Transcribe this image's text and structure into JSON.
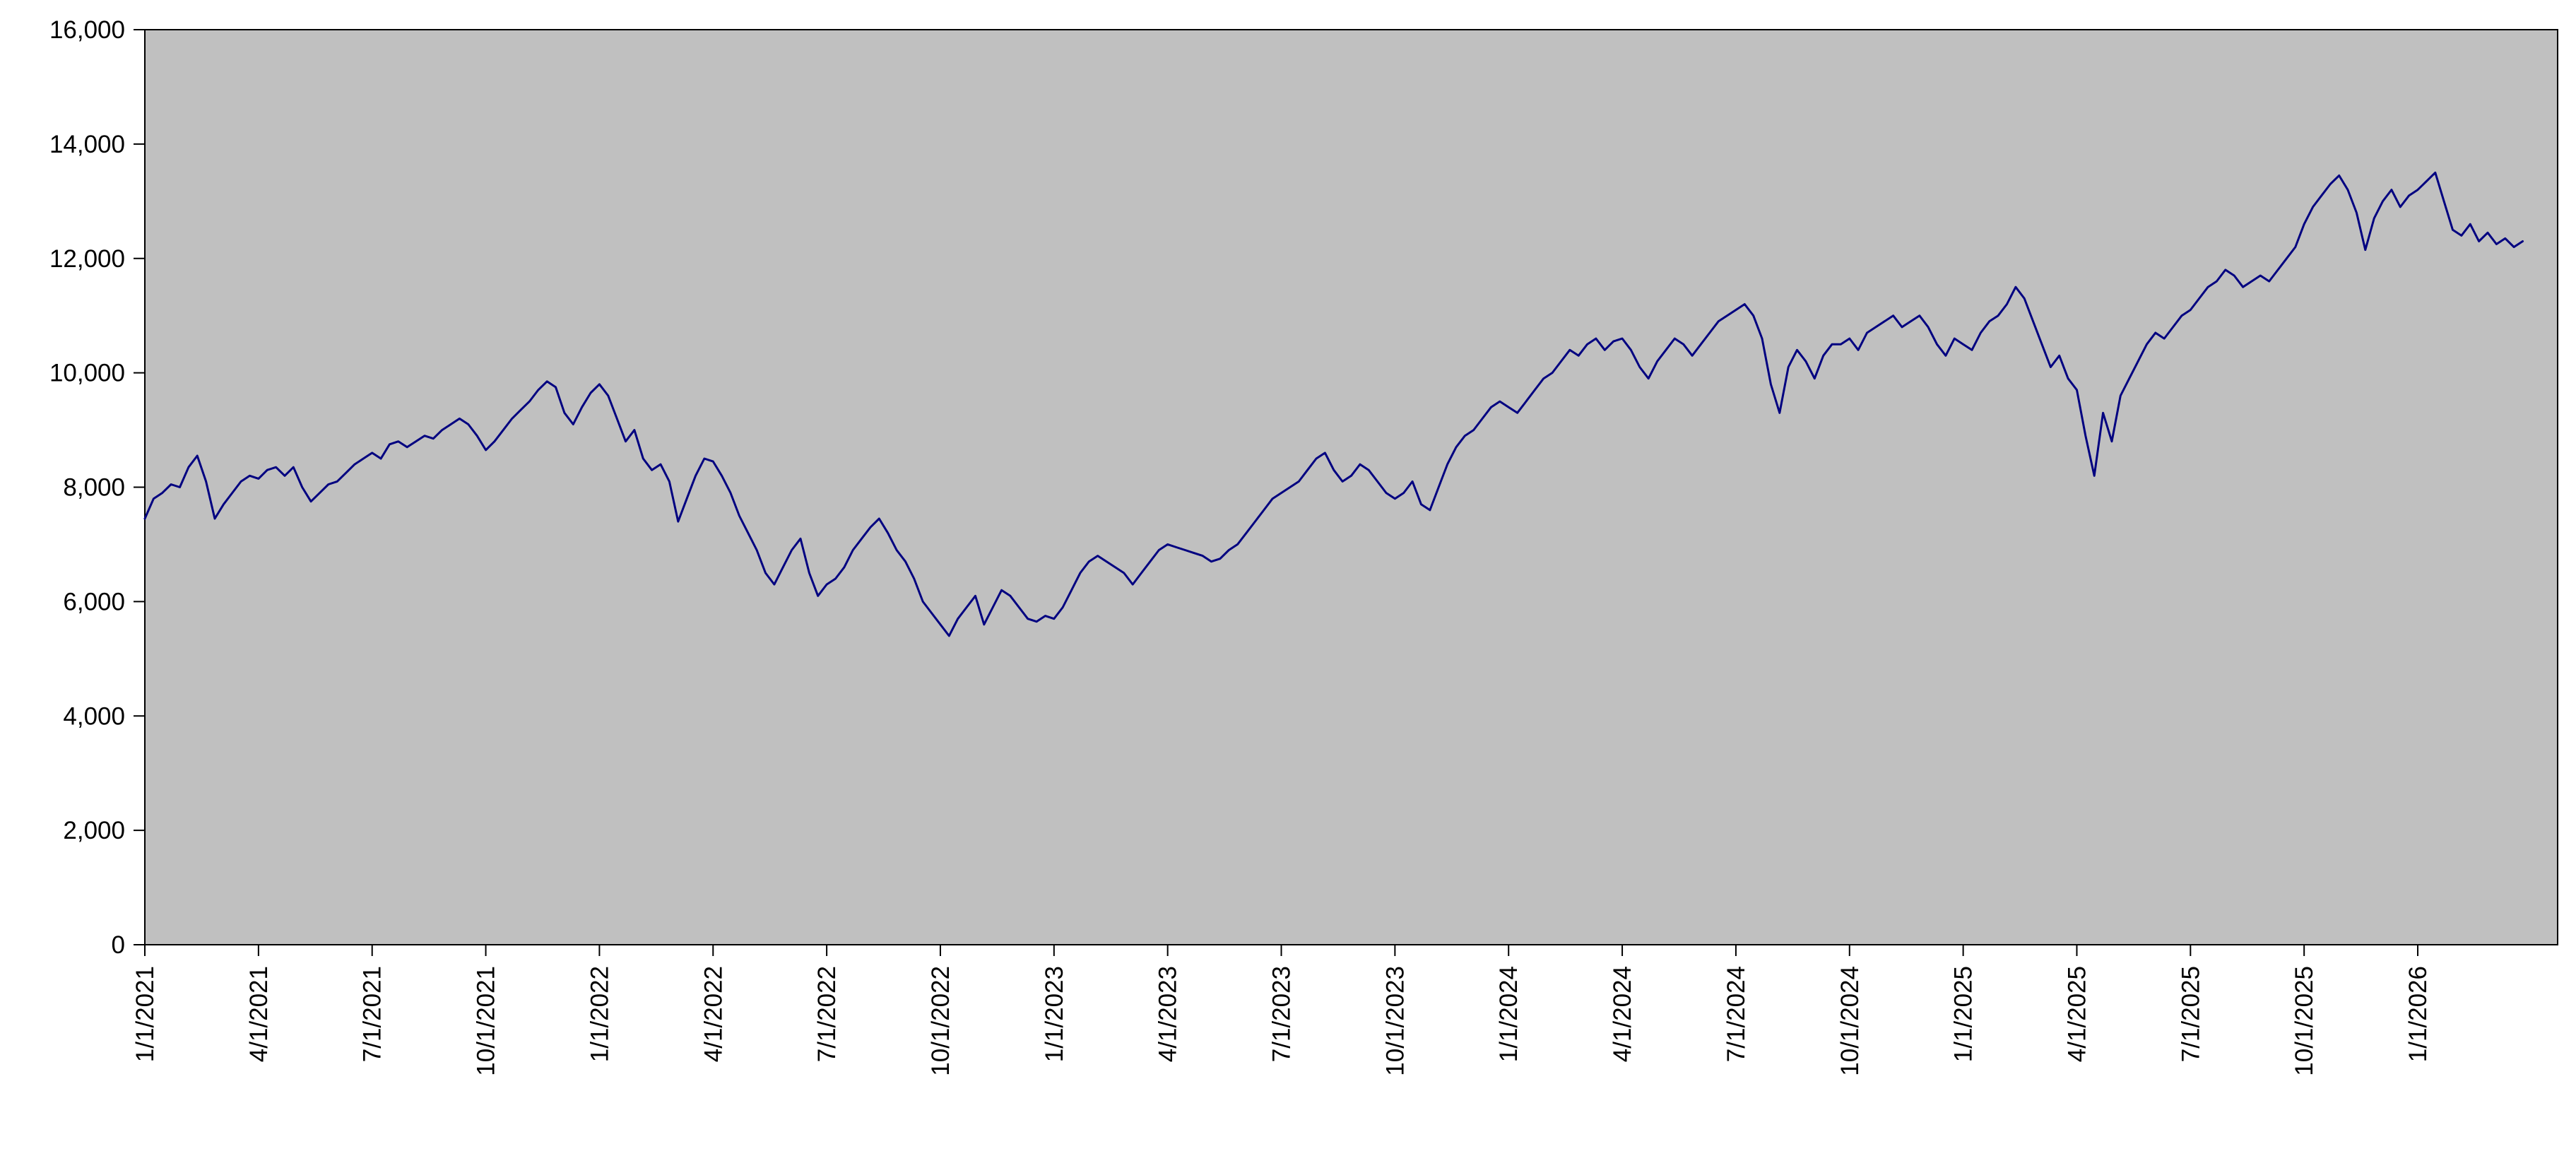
{
  "chart_data": {
    "type": "line",
    "title": "",
    "xlabel": "",
    "ylabel": "",
    "grid": false,
    "legend": "none",
    "plot_bg": "#c0c0c0",
    "line_color": "#000080",
    "ylim": [
      0,
      16000
    ],
    "y_ticks": [
      0,
      2000,
      4000,
      6000,
      8000,
      10000,
      12000,
      14000,
      16000
    ],
    "y_tick_labels": [
      "0",
      "2,000",
      "4,000",
      "6,000",
      "8,000",
      "10,000",
      "12,000",
      "14,000",
      "16,000"
    ],
    "x_unit": "weeks from first date",
    "x_max": 276,
    "x_tick_positions": [
      0,
      13,
      26,
      39,
      52,
      65,
      78,
      91,
      104,
      117,
      130,
      143,
      156,
      169,
      182,
      195,
      208,
      221,
      234,
      247,
      260
    ],
    "x_tick_labels": [
      "1/1/2021",
      "4/1/2021",
      "7/1/2021",
      "10/1/2021",
      "1/1/2022",
      "4/1/2022",
      "7/1/2022",
      "10/1/2022",
      "1/1/2023",
      "4/1/2023",
      "7/1/2023",
      "10/1/2023",
      "1/1/2024",
      "4/1/2024",
      "7/1/2024",
      "10/1/2024",
      "1/1/2025",
      "4/1/2025",
      "7/1/2025",
      "10/1/2025",
      "1/1/2026"
    ],
    "values": [
      7450,
      7800,
      7900,
      8050,
      8000,
      8350,
      8550,
      8100,
      7450,
      7700,
      7900,
      8100,
      8200,
      8150,
      8300,
      8350,
      8200,
      8350,
      8000,
      7750,
      7900,
      8050,
      8100,
      8250,
      8400,
      8500,
      8600,
      8500,
      8750,
      8800,
      8700,
      8800,
      8900,
      8850,
      9000,
      9100,
      9200,
      9100,
      8900,
      8650,
      8800,
      9000,
      9200,
      9350,
      9500,
      9700,
      9850,
      9750,
      9300,
      9100,
      9400,
      9650,
      9800,
      9600,
      9200,
      8800,
      9000,
      8500,
      8300,
      8400,
      8100,
      7400,
      7800,
      8200,
      8500,
      8450,
      8200,
      7900,
      7500,
      7200,
      6900,
      6500,
      6300,
      6600,
      6900,
      7100,
      6500,
      6100,
      6300,
      6400,
      6600,
      6900,
      7100,
      7300,
      7450,
      7200,
      6900,
      6700,
      6400,
      6000,
      5800,
      5600,
      5400,
      5700,
      5900,
      6100,
      5600,
      5900,
      6200,
      6100,
      5900,
      5700,
      5650,
      5750,
      5700,
      5900,
      6200,
      6500,
      6700,
      6800,
      6700,
      6600,
      6500,
      6300,
      6500,
      6700,
      6900,
      7000,
      6950,
      6900,
      6850,
      6800,
      6700,
      6750,
      6900,
      7000,
      7200,
      7400,
      7600,
      7800,
      7900,
      8000,
      8100,
      8300,
      8500,
      8600,
      8300,
      8100,
      8200,
      8400,
      8300,
      8100,
      7900,
      7800,
      7900,
      8100,
      7700,
      7600,
      8000,
      8400,
      8700,
      8900,
      9000,
      9200,
      9400,
      9500,
      9400,
      9300,
      9500,
      9700,
      9900,
      10000,
      10200,
      10400,
      10300,
      10500,
      10600,
      10400,
      10550,
      10600,
      10400,
      10100,
      9900,
      10200,
      10400,
      10600,
      10500,
      10300,
      10500,
      10700,
      10900,
      11000,
      11100,
      11200,
      11000,
      10600,
      9800,
      9300,
      10100,
      10400,
      10200,
      9900,
      10300,
      10500,
      10500,
      10600,
      10400,
      10700,
      10800,
      10900,
      11000,
      10800,
      10900,
      11000,
      10800,
      10500,
      10300,
      10600,
      10500,
      10400,
      10700,
      10900,
      11000,
      11200,
      11500,
      11300,
      10900,
      10500,
      10100,
      10300,
      9900,
      9700,
      8900,
      8200,
      9300,
      8800,
      9600,
      9900,
      10200,
      10500,
      10700,
      10600,
      10800,
      11000,
      11100,
      11300,
      11500,
      11600,
      11800,
      11700,
      11500,
      11600,
      11700,
      11600,
      11800,
      12000,
      12200,
      12600,
      12900,
      13100,
      13300,
      13450,
      13200,
      12800,
      12150,
      12700,
      13000,
      13200,
      12900,
      13100,
      13200,
      13350,
      13500,
      13000,
      12500,
      12400,
      12600,
      12300,
      12450,
      12250,
      12350,
      12200,
      12300
    ]
  }
}
